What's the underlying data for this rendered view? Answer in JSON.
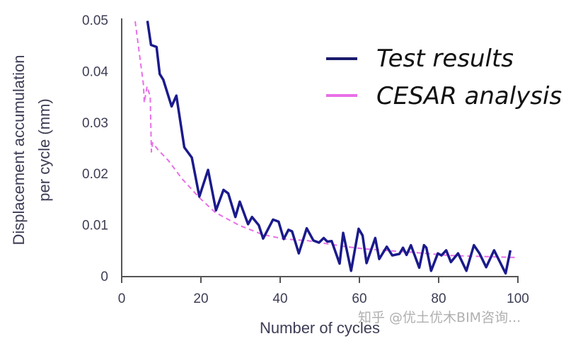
{
  "chart_data": {
    "type": "line",
    "title": "",
    "xlabel": "Number of cycles",
    "ylabel": [
      "Displacement accumulation",
      "per cycle (mm)"
    ],
    "xlim": [
      0,
      100
    ],
    "ylim": [
      0,
      0.05
    ],
    "xticks": [
      "0",
      "20",
      "40",
      "60",
      "80",
      "100"
    ],
    "yticks": [
      "0",
      "0.01",
      "0.02",
      "0.03",
      "0.04",
      "0.05"
    ],
    "grid": false,
    "legend_position": "top-right",
    "series": [
      {
        "name": "Test results",
        "color": "#1a1a8c",
        "style": "solid",
        "x": [
          6.5,
          7.4,
          8.8,
          9.6,
          10.5,
          12.6,
          13.8,
          15.8,
          17.7,
          19.6,
          21.8,
          23.8,
          25.7,
          26.9,
          28.7,
          29.8,
          31.9,
          32.9,
          34.6,
          35.7,
          38.2,
          39.6,
          40.9,
          42.1,
          43,
          44.7,
          46.7,
          48.4,
          49.8,
          51,
          51.9,
          53,
          55,
          55.9,
          57.9,
          59.8,
          60.8,
          61.8,
          64,
          65,
          66.9,
          68.3,
          70.1,
          71,
          71.9,
          73,
          75.1,
          76.3,
          76.9,
          78.1,
          79.8,
          80.7,
          81.9,
          83.1,
          84.9,
          87,
          88.9,
          90.3,
          92,
          94,
          96.9,
          98.1
        ],
        "y": [
          0.0498,
          0.0451,
          0.0447,
          0.0394,
          0.0383,
          0.0331,
          0.0352,
          0.0251,
          0.0231,
          0.0155,
          0.0207,
          0.0128,
          0.0168,
          0.0161,
          0.0115,
          0.0145,
          0.0101,
          0.0115,
          0.0099,
          0.0073,
          0.011,
          0.0106,
          0.0072,
          0.009,
          0.0087,
          0.0044,
          0.0093,
          0.0069,
          0.0065,
          0.0074,
          0.0067,
          0.0068,
          0.0024,
          0.0084,
          0.001,
          0.0092,
          0.0079,
          0.0025,
          0.0074,
          0.0033,
          0.0057,
          0.004,
          0.0043,
          0.0055,
          0.0041,
          0.006,
          0.0016,
          0.006,
          0.0055,
          0.001,
          0.0044,
          0.004,
          0.005,
          0.0027,
          0.0044,
          0.001,
          0.006,
          0.0044,
          0.0017,
          0.005,
          0.0005,
          0.005
        ]
      },
      {
        "name": "CESAR analysis",
        "color": "#e86ee8",
        "style": "dashed",
        "x": [
          3.4,
          5.5,
          5.7,
          6.4,
          7.2,
          7.5,
          7.8,
          9.2,
          11.7,
          15.3,
          19.7,
          23.6,
          29.6,
          35.5,
          41,
          46.8,
          55.7,
          61,
          73.6,
          82.5,
          99.3
        ],
        "y": [
          0.0497,
          0.0373,
          0.0338,
          0.037,
          0.035,
          0.0242,
          0.026,
          0.0246,
          0.0226,
          0.0189,
          0.0152,
          0.0124,
          0.0099,
          0.0081,
          0.0072,
          0.0069,
          0.0058,
          0.0053,
          0.0046,
          0.004,
          0.0036
        ]
      }
    ]
  },
  "watermark": "知乎 @优土优木BIM咨询..."
}
